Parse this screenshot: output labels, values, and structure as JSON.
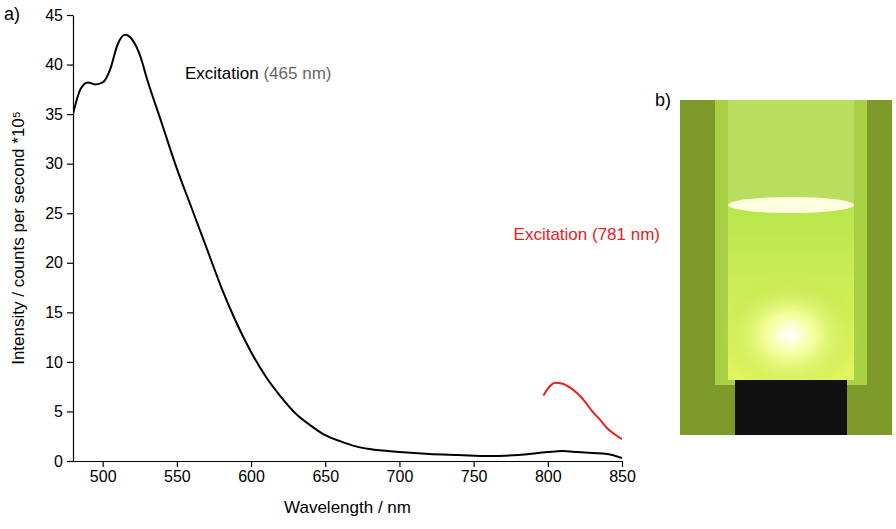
{
  "chart_data": {
    "type": "line",
    "label": "a)",
    "x_label": "Wavelength / nm",
    "y_label": "Intensity / counts per second *10⁵",
    "xlim": [
      480,
      850
    ],
    "xticks": [
      500,
      550,
      600,
      650,
      700,
      750,
      800,
      850
    ],
    "ylim": [
      0,
      45
    ],
    "yticks": [
      0,
      5,
      10,
      15,
      20,
      25,
      30,
      35,
      40,
      45
    ],
    "grid": false,
    "series": [
      {
        "name": "Excitation (465 nm)",
        "color": "#000000",
        "x": [
          480,
          485,
          490,
          495,
          500,
          505,
          510,
          515,
          520,
          525,
          530,
          540,
          550,
          560,
          570,
          580,
          590,
          600,
          610,
          620,
          630,
          640,
          650,
          660,
          670,
          680,
          700,
          720,
          740,
          760,
          780,
          800,
          810,
          820,
          830,
          840,
          850
        ],
        "values": [
          35,
          37.5,
          38.2,
          38.0,
          38.2,
          39.5,
          42,
          43,
          42.5,
          41,
          38.5,
          34,
          29.5,
          25.5,
          21.5,
          17.5,
          14,
          11,
          8.5,
          6.5,
          4.8,
          3.6,
          2.6,
          2.0,
          1.5,
          1.2,
          0.9,
          0.7,
          0.6,
          0.5,
          0.6,
          0.9,
          1.0,
          0.9,
          0.8,
          0.7,
          0.3
        ]
      },
      {
        "name": "Excitation (781 nm)",
        "color": "#e8201e",
        "x": [
          797,
          800,
          805,
          810,
          815,
          820,
          825,
          830,
          835,
          840,
          845,
          850
        ],
        "values": [
          6.6,
          7.3,
          7.9,
          7.8,
          7.4,
          6.8,
          6.0,
          5.0,
          4.2,
          3.3,
          2.7,
          2.2
        ]
      }
    ]
  },
  "photo": {
    "label": "b)"
  }
}
